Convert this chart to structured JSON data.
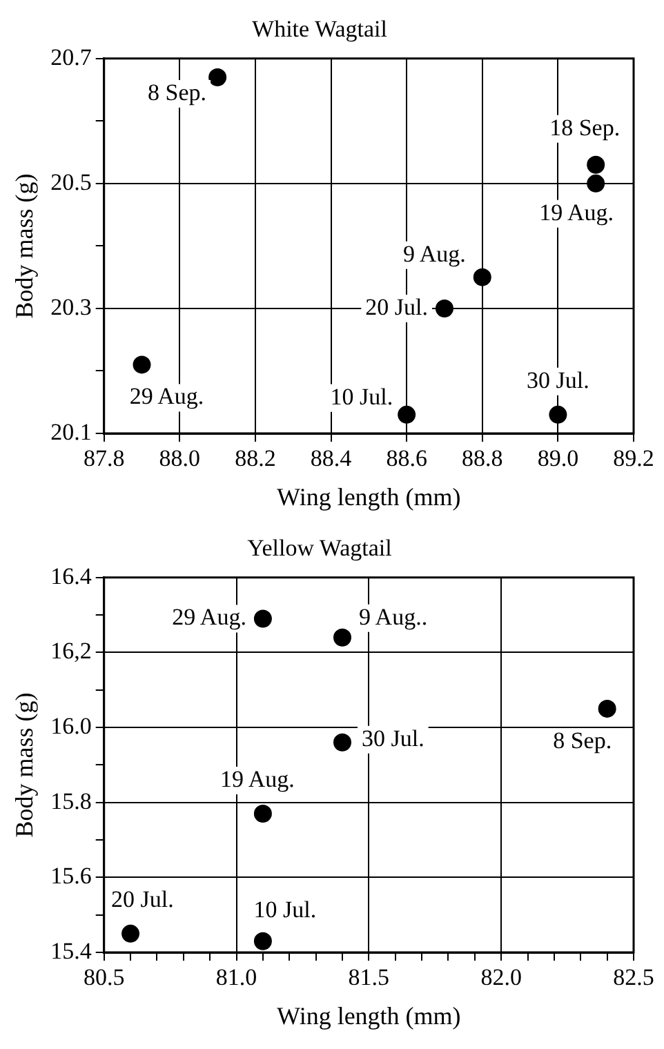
{
  "chart_data": [
    {
      "type": "scatter",
      "title": "White Wagtail",
      "xlabel": "Wing length (mm)",
      "ylabel": "Body mass (g)",
      "color": "#000000",
      "marker": "circle",
      "grid": true,
      "legend": false,
      "x": [
        88.1,
        89.1,
        89.1,
        88.8,
        88.7,
        87.9,
        88.6,
        89.0
      ],
      "values": [
        20.67,
        20.53,
        20.5,
        20.35,
        20.3,
        20.21,
        20.13,
        20.13
      ],
      "xlim": [
        87.8,
        89.2
      ],
      "xticks": [
        87.8,
        {
          "value": 88,
          "label": "88.0"
        },
        88.2,
        88.4,
        88.6,
        88.8,
        {
          "value": 89,
          "label": "89.0"
        },
        89.2
      ],
      "ylim": [
        20.1,
        20.7
      ],
      "yticks": [
        20.1,
        {
          "value": 20.2,
          "label": null
        },
        20.3,
        {
          "value": 20.4,
          "label": null
        },
        20.5,
        {
          "value": 20.6,
          "label": null
        },
        20.7
      ],
      "annotations": [
        {
          "text": "8 Sep.",
          "x": 88.1,
          "y": 20.67
        },
        {
          "text": "18 Sep.",
          "x": 89.1,
          "y": 20.53
        },
        {
          "text": "19 Aug.",
          "x": 89.1,
          "y": 20.5
        },
        {
          "text": "9 Aug.",
          "x": 88.8,
          "y": 20.35
        },
        {
          "text": "20 Jul.",
          "x": 88.7,
          "y": 20.3
        },
        {
          "text": "29 Aug.",
          "x": 87.9,
          "y": 20.21
        },
        {
          "text": "10 Jul.",
          "x": 88.6,
          "y": 20.13
        },
        {
          "text": "30 Jul.",
          "x": 89.0,
          "y": 20.13
        }
      ]
    },
    {
      "type": "scatter",
      "title": "Yellow Wagtail",
      "xlabel": "Wing length (mm)",
      "ylabel": "Body mass (g)",
      "color": "#000000",
      "marker": "circle",
      "grid": true,
      "legend": false,
      "x": [
        81.1,
        81.4,
        82.4,
        81.4,
        81.1,
        80.6,
        81.1
      ],
      "values": [
        16.29,
        16.24,
        16.05,
        15.96,
        15.77,
        15.45,
        15.43
      ],
      "xlim": [
        80.5,
        82.5
      ],
      "xticks": [
        80.5,
        {
          "value": 80.6,
          "label": null
        },
        {
          "value": 80.7,
          "label": null
        },
        {
          "value": 80.8,
          "label": null
        },
        {
          "value": 80.9,
          "label": null
        },
        {
          "value": 81,
          "label": "81.0"
        },
        {
          "value": 81.1,
          "label": null
        },
        {
          "value": 81.2,
          "label": null
        },
        {
          "value": 81.3,
          "label": null
        },
        {
          "value": 81.4,
          "label": null
        },
        81.5,
        {
          "value": 81.6,
          "label": null
        },
        {
          "value": 81.7,
          "label": null
        },
        {
          "value": 81.8,
          "label": null
        },
        {
          "value": 81.9,
          "label": null
        },
        {
          "value": 82,
          "label": "82.0"
        },
        {
          "value": 82.1,
          "label": null
        },
        {
          "value": 82.2,
          "label": null
        },
        {
          "value": 82.3,
          "label": null
        },
        {
          "value": 82.4,
          "label": null
        },
        82.5
      ],
      "ylim": [
        15.4,
        16.4
      ],
      "yticks": [
        15.4,
        {
          "value": 15.5,
          "label": null
        },
        15.6,
        {
          "value": 15.7,
          "label": null
        },
        15.8,
        {
          "value": 15.9,
          "label": null
        },
        {
          "value": 16,
          "label": "16.0"
        },
        {
          "value": 16.1,
          "label": null
        },
        {
          "value": 16.2,
          "label": "16,2"
        },
        {
          "value": 16.3,
          "label": null
        },
        16.4
      ],
      "annotations": [
        {
          "text": "29 Aug.",
          "x": 81.1,
          "y": 16.29
        },
        {
          "text": "9 Aug..",
          "x": 81.4,
          "y": 16.24
        },
        {
          "text": "8 Sep.",
          "x": 82.4,
          "y": 16.05
        },
        {
          "text": "30 Jul.",
          "x": 81.4,
          "y": 15.96
        },
        {
          "text": "19 Aug.",
          "x": 81.1,
          "y": 15.77
        },
        {
          "text": "20 Jul.",
          "x": 80.6,
          "y": 15.45
        },
        {
          "text": "10 Jul.",
          "x": 81.1,
          "y": 15.43
        }
      ]
    }
  ]
}
